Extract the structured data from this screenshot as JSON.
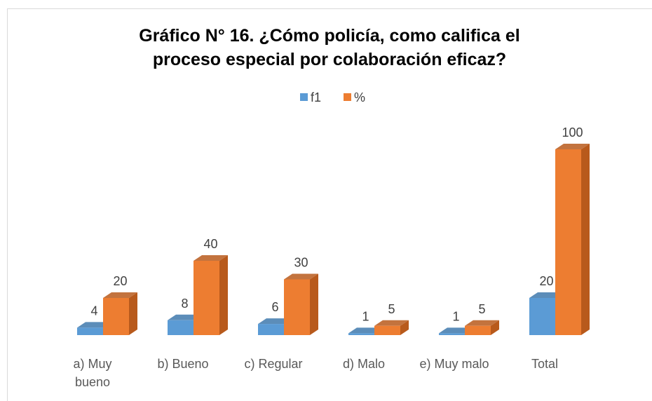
{
  "chart_data": {
    "type": "bar3d",
    "title": "Gráfico N° 16. ¿Cómo policía, como califica el proceso especial por colaboración eficaz?",
    "categories": [
      "a) Muy bueno",
      "b) Bueno",
      "c) Regular",
      "d) Malo",
      "e) Muy malo",
      "Total"
    ],
    "series": [
      {
        "name": "f1",
        "color": "#5b9bd5",
        "side": "#3f79ad",
        "values": [
          4,
          8,
          6,
          1,
          1,
          20
        ]
      },
      {
        "name": "%",
        "color": "#ed7d31",
        "side": "#b85a1c",
        "values": [
          20,
          40,
          30,
          5,
          5,
          100
        ]
      }
    ],
    "ylim": [
      0,
      100
    ],
    "legend": "top"
  }
}
